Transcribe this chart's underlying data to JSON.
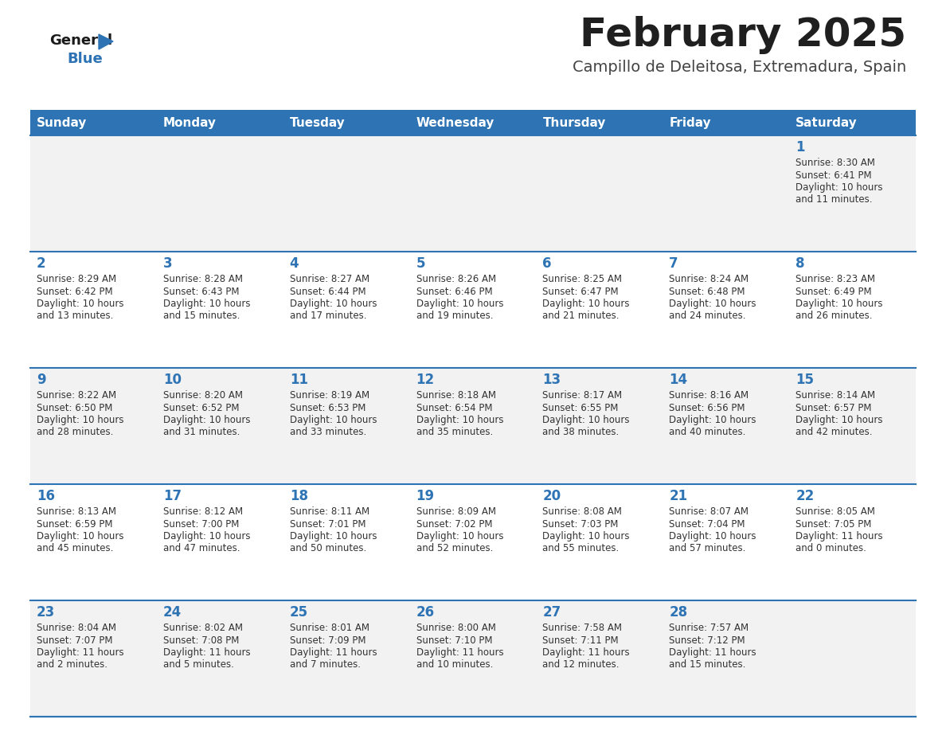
{
  "title": "February 2025",
  "subtitle": "Campillo de Deleitosa, Extremadura, Spain",
  "header_bg": "#2E74B5",
  "header_text": "#FFFFFF",
  "row_bg_odd": "#F2F2F2",
  "row_bg_even": "#FFFFFF",
  "cell_text": "#333333",
  "day_number_color": "#2E74B5",
  "separator_color": "#2E74B5",
  "days_of_week": [
    "Sunday",
    "Monday",
    "Tuesday",
    "Wednesday",
    "Thursday",
    "Friday",
    "Saturday"
  ],
  "weeks": [
    [
      {
        "day": null,
        "sunrise": null,
        "sunset": null,
        "daylight_line1": null,
        "daylight_line2": null
      },
      {
        "day": null,
        "sunrise": null,
        "sunset": null,
        "daylight_line1": null,
        "daylight_line2": null
      },
      {
        "day": null,
        "sunrise": null,
        "sunset": null,
        "daylight_line1": null,
        "daylight_line2": null
      },
      {
        "day": null,
        "sunrise": null,
        "sunset": null,
        "daylight_line1": null,
        "daylight_line2": null
      },
      {
        "day": null,
        "sunrise": null,
        "sunset": null,
        "daylight_line1": null,
        "daylight_line2": null
      },
      {
        "day": null,
        "sunrise": null,
        "sunset": null,
        "daylight_line1": null,
        "daylight_line2": null
      },
      {
        "day": "1",
        "sunrise": "Sunrise: 8:30 AM",
        "sunset": "Sunset: 6:41 PM",
        "daylight_line1": "Daylight: 10 hours",
        "daylight_line2": "and 11 minutes."
      }
    ],
    [
      {
        "day": "2",
        "sunrise": "Sunrise: 8:29 AM",
        "sunset": "Sunset: 6:42 PM",
        "daylight_line1": "Daylight: 10 hours",
        "daylight_line2": "and 13 minutes."
      },
      {
        "day": "3",
        "sunrise": "Sunrise: 8:28 AM",
        "sunset": "Sunset: 6:43 PM",
        "daylight_line1": "Daylight: 10 hours",
        "daylight_line2": "and 15 minutes."
      },
      {
        "day": "4",
        "sunrise": "Sunrise: 8:27 AM",
        "sunset": "Sunset: 6:44 PM",
        "daylight_line1": "Daylight: 10 hours",
        "daylight_line2": "and 17 minutes."
      },
      {
        "day": "5",
        "sunrise": "Sunrise: 8:26 AM",
        "sunset": "Sunset: 6:46 PM",
        "daylight_line1": "Daylight: 10 hours",
        "daylight_line2": "and 19 minutes."
      },
      {
        "day": "6",
        "sunrise": "Sunrise: 8:25 AM",
        "sunset": "Sunset: 6:47 PM",
        "daylight_line1": "Daylight: 10 hours",
        "daylight_line2": "and 21 minutes."
      },
      {
        "day": "7",
        "sunrise": "Sunrise: 8:24 AM",
        "sunset": "Sunset: 6:48 PM",
        "daylight_line1": "Daylight: 10 hours",
        "daylight_line2": "and 24 minutes."
      },
      {
        "day": "8",
        "sunrise": "Sunrise: 8:23 AM",
        "sunset": "Sunset: 6:49 PM",
        "daylight_line1": "Daylight: 10 hours",
        "daylight_line2": "and 26 minutes."
      }
    ],
    [
      {
        "day": "9",
        "sunrise": "Sunrise: 8:22 AM",
        "sunset": "Sunset: 6:50 PM",
        "daylight_line1": "Daylight: 10 hours",
        "daylight_line2": "and 28 minutes."
      },
      {
        "day": "10",
        "sunrise": "Sunrise: 8:20 AM",
        "sunset": "Sunset: 6:52 PM",
        "daylight_line1": "Daylight: 10 hours",
        "daylight_line2": "and 31 minutes."
      },
      {
        "day": "11",
        "sunrise": "Sunrise: 8:19 AM",
        "sunset": "Sunset: 6:53 PM",
        "daylight_line1": "Daylight: 10 hours",
        "daylight_line2": "and 33 minutes."
      },
      {
        "day": "12",
        "sunrise": "Sunrise: 8:18 AM",
        "sunset": "Sunset: 6:54 PM",
        "daylight_line1": "Daylight: 10 hours",
        "daylight_line2": "and 35 minutes."
      },
      {
        "day": "13",
        "sunrise": "Sunrise: 8:17 AM",
        "sunset": "Sunset: 6:55 PM",
        "daylight_line1": "Daylight: 10 hours",
        "daylight_line2": "and 38 minutes."
      },
      {
        "day": "14",
        "sunrise": "Sunrise: 8:16 AM",
        "sunset": "Sunset: 6:56 PM",
        "daylight_line1": "Daylight: 10 hours",
        "daylight_line2": "and 40 minutes."
      },
      {
        "day": "15",
        "sunrise": "Sunrise: 8:14 AM",
        "sunset": "Sunset: 6:57 PM",
        "daylight_line1": "Daylight: 10 hours",
        "daylight_line2": "and 42 minutes."
      }
    ],
    [
      {
        "day": "16",
        "sunrise": "Sunrise: 8:13 AM",
        "sunset": "Sunset: 6:59 PM",
        "daylight_line1": "Daylight: 10 hours",
        "daylight_line2": "and 45 minutes."
      },
      {
        "day": "17",
        "sunrise": "Sunrise: 8:12 AM",
        "sunset": "Sunset: 7:00 PM",
        "daylight_line1": "Daylight: 10 hours",
        "daylight_line2": "and 47 minutes."
      },
      {
        "day": "18",
        "sunrise": "Sunrise: 8:11 AM",
        "sunset": "Sunset: 7:01 PM",
        "daylight_line1": "Daylight: 10 hours",
        "daylight_line2": "and 50 minutes."
      },
      {
        "day": "19",
        "sunrise": "Sunrise: 8:09 AM",
        "sunset": "Sunset: 7:02 PM",
        "daylight_line1": "Daylight: 10 hours",
        "daylight_line2": "and 52 minutes."
      },
      {
        "day": "20",
        "sunrise": "Sunrise: 8:08 AM",
        "sunset": "Sunset: 7:03 PM",
        "daylight_line1": "Daylight: 10 hours",
        "daylight_line2": "and 55 minutes."
      },
      {
        "day": "21",
        "sunrise": "Sunrise: 8:07 AM",
        "sunset": "Sunset: 7:04 PM",
        "daylight_line1": "Daylight: 10 hours",
        "daylight_line2": "and 57 minutes."
      },
      {
        "day": "22",
        "sunrise": "Sunrise: 8:05 AM",
        "sunset": "Sunset: 7:05 PM",
        "daylight_line1": "Daylight: 11 hours",
        "daylight_line2": "and 0 minutes."
      }
    ],
    [
      {
        "day": "23",
        "sunrise": "Sunrise: 8:04 AM",
        "sunset": "Sunset: 7:07 PM",
        "daylight_line1": "Daylight: 11 hours",
        "daylight_line2": "and 2 minutes."
      },
      {
        "day": "24",
        "sunrise": "Sunrise: 8:02 AM",
        "sunset": "Sunset: 7:08 PM",
        "daylight_line1": "Daylight: 11 hours",
        "daylight_line2": "and 5 minutes."
      },
      {
        "day": "25",
        "sunrise": "Sunrise: 8:01 AM",
        "sunset": "Sunset: 7:09 PM",
        "daylight_line1": "Daylight: 11 hours",
        "daylight_line2": "and 7 minutes."
      },
      {
        "day": "26",
        "sunrise": "Sunrise: 8:00 AM",
        "sunset": "Sunset: 7:10 PM",
        "daylight_line1": "Daylight: 11 hours",
        "daylight_line2": "and 10 minutes."
      },
      {
        "day": "27",
        "sunrise": "Sunrise: 7:58 AM",
        "sunset": "Sunset: 7:11 PM",
        "daylight_line1": "Daylight: 11 hours",
        "daylight_line2": "and 12 minutes."
      },
      {
        "day": "28",
        "sunrise": "Sunrise: 7:57 AM",
        "sunset": "Sunset: 7:12 PM",
        "daylight_line1": "Daylight: 11 hours",
        "daylight_line2": "and 15 minutes."
      },
      {
        "day": null,
        "sunrise": null,
        "sunset": null,
        "daylight_line1": null,
        "daylight_line2": null
      }
    ]
  ]
}
